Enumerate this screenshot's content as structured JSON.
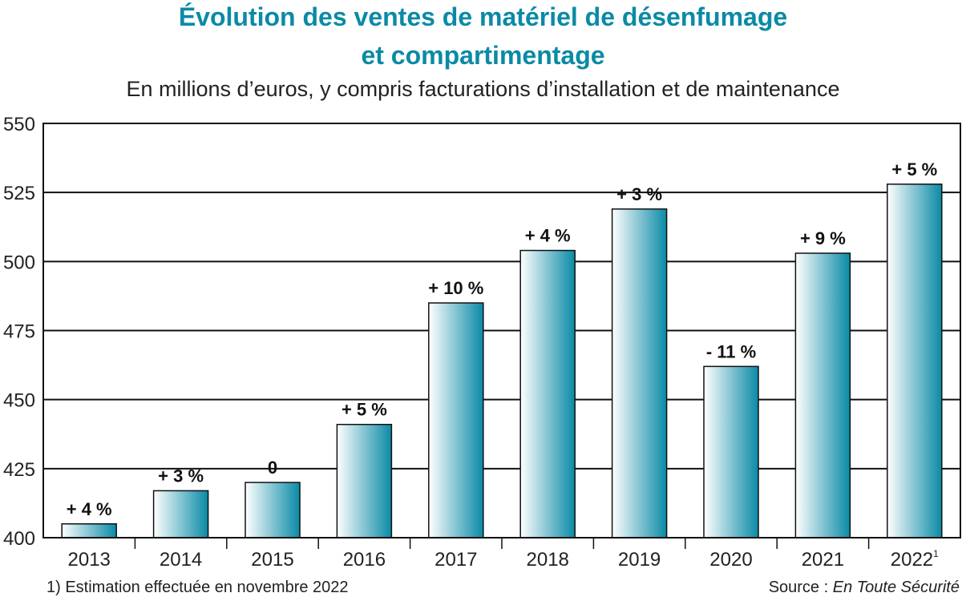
{
  "chart_data": {
    "type": "bar",
    "title_line1": "Évolution des ventes de matériel de désenfumage",
    "title_line2": "et compartimentage",
    "subtitle": "En millions d’euros, y compris facturations d’installation et de maintenance",
    "categories": [
      "2013",
      "2014",
      "2015",
      "2016",
      "2017",
      "2018",
      "2019",
      "2020",
      "2021",
      "2022"
    ],
    "category_superscripts": [
      "",
      "",
      "",
      "",
      "",
      "",
      "",
      "",
      "",
      "1"
    ],
    "values": [
      405,
      417,
      420,
      441,
      485,
      504,
      519,
      462,
      503,
      528
    ],
    "labels": [
      "+ 4 %",
      "+ 3 %",
      "0",
      "+ 5 %",
      "+ 10 %",
      "+ 4 %",
      "+ 3 %",
      "- 11 %",
      "+ 9 %",
      "+ 5 %"
    ],
    "ylim": [
      400,
      550
    ],
    "yticks": [
      400,
      425,
      450,
      475,
      500,
      525,
      550
    ],
    "grid": true,
    "colors": {
      "bar_light": "#ffffff",
      "bar_dark": "#0a8aa6",
      "title": "#0a8aa6"
    }
  },
  "footnote": "1) Estimation effectuée en novembre 2022",
  "source_label": "Source : ",
  "source_name": "En Toute Sécurité"
}
